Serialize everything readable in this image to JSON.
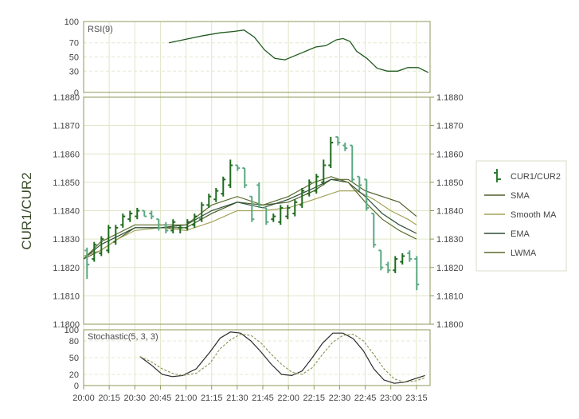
{
  "chart_data": {
    "type": "ohlc",
    "ylabel": "CUR1/CUR2",
    "price_range": [
      1.18,
      1.188
    ],
    "price_ticks": [
      "1.1800",
      "1.1810",
      "1.1820",
      "1.1830",
      "1.1840",
      "1.1850",
      "1.1860",
      "1.1870",
      "1.1880"
    ],
    "time_ticks": [
      "20:00",
      "20:15",
      "20:30",
      "20:45",
      "21:00",
      "21:15",
      "21:30",
      "21:45",
      "22:00",
      "22:15",
      "22:30",
      "22:45",
      "23:00",
      "23:15"
    ],
    "legend_position": "right",
    "legend": [
      {
        "name": "CUR1/CUR2",
        "color": "#2e7d32",
        "kind": "ohlc"
      },
      {
        "name": "SMA",
        "color": "#4e5d2a",
        "kind": "line"
      },
      {
        "name": "Smooth MA",
        "color": "#a3a35a",
        "kind": "line"
      },
      {
        "name": "EMA",
        "color": "#2f4f3a",
        "kind": "line"
      },
      {
        "name": "LWMA",
        "color": "#5a6b2a",
        "kind": "line"
      }
    ],
    "colors": {
      "up": "#1f6b1f",
      "down": "#5aa882",
      "grid": "#dfe6c8",
      "axis": "#8c9a5a"
    },
    "bars": [
      {
        "t": 0.0,
        "o": 1.1826,
        "h": 1.1827,
        "l": 1.1816,
        "c": 1.1821
      },
      {
        "t": 4.2,
        "o": 1.1823,
        "h": 1.1829,
        "l": 1.1822,
        "c": 1.1828
      },
      {
        "t": 8.4,
        "o": 1.1825,
        "h": 1.1831,
        "l": 1.1824,
        "c": 1.183
      },
      {
        "t": 12.6,
        "o": 1.1826,
        "h": 1.1835,
        "l": 1.1825,
        "c": 1.1834
      },
      {
        "t": 16.8,
        "o": 1.1829,
        "h": 1.1835,
        "l": 1.1828,
        "c": 1.1834
      },
      {
        "t": 21.0,
        "o": 1.1835,
        "h": 1.1839,
        "l": 1.1834,
        "c": 1.1838
      },
      {
        "t": 25.2,
        "o": 1.1837,
        "h": 1.184,
        "l": 1.1836,
        "c": 1.1839
      },
      {
        "t": 29.4,
        "o": 1.1838,
        "h": 1.1841,
        "l": 1.1837,
        "c": 1.184
      },
      {
        "t": 33.6,
        "o": 1.184,
        "h": 1.184,
        "l": 1.1838,
        "c": 1.1838
      },
      {
        "t": 37.8,
        "o": 1.1839,
        "h": 1.184,
        "l": 1.1837,
        "c": 1.1838
      },
      {
        "t": 42.0,
        "o": 1.1837,
        "h": 1.1837,
        "l": 1.1833,
        "c": 1.1834
      },
      {
        "t": 46.2,
        "o": 1.1835,
        "h": 1.1836,
        "l": 1.1832,
        "c": 1.1833
      },
      {
        "t": 50.4,
        "o": 1.1833,
        "h": 1.1837,
        "l": 1.1832,
        "c": 1.1836
      },
      {
        "t": 54.6,
        "o": 1.1834,
        "h": 1.1835,
        "l": 1.1832,
        "c": 1.1834
      },
      {
        "t": 58.8,
        "o": 1.1834,
        "h": 1.1837,
        "l": 1.1833,
        "c": 1.1836
      },
      {
        "t": 63.0,
        "o": 1.1835,
        "h": 1.1839,
        "l": 1.1834,
        "c": 1.1838
      },
      {
        "t": 67.2,
        "o": 1.1837,
        "h": 1.1843,
        "l": 1.1836,
        "c": 1.1842
      },
      {
        "t": 71.4,
        "o": 1.1842,
        "h": 1.1846,
        "l": 1.1841,
        "c": 1.1845
      },
      {
        "t": 75.6,
        "o": 1.1844,
        "h": 1.1848,
        "l": 1.1843,
        "c": 1.1847
      },
      {
        "t": 79.8,
        "o": 1.1846,
        "h": 1.1852,
        "l": 1.1845,
        "c": 1.1851
      },
      {
        "t": 84.0,
        "o": 1.1849,
        "h": 1.1858,
        "l": 1.1848,
        "c": 1.1856
      },
      {
        "t": 88.2,
        "o": 1.1856,
        "h": 1.1856,
        "l": 1.1854,
        "c": 1.1855
      },
      {
        "t": 92.4,
        "o": 1.1855,
        "h": 1.1855,
        "l": 1.1848,
        "c": 1.1849
      },
      {
        "t": 96.6,
        "o": 1.1845,
        "h": 1.1845,
        "l": 1.1836,
        "c": 1.1837
      },
      {
        "t": 100.8,
        "o": 1.1849,
        "h": 1.185,
        "l": 1.1841,
        "c": 1.1842
      },
      {
        "t": 105.0,
        "o": 1.1841,
        "h": 1.1841,
        "l": 1.1835,
        "c": 1.1836
      },
      {
        "t": 109.2,
        "o": 1.1837,
        "h": 1.1839,
        "l": 1.1836,
        "c": 1.1838
      },
      {
        "t": 113.4,
        "o": 1.1836,
        "h": 1.1842,
        "l": 1.1835,
        "c": 1.1841
      },
      {
        "t": 117.6,
        "o": 1.1838,
        "h": 1.1842,
        "l": 1.1837,
        "c": 1.1841
      },
      {
        "t": 121.8,
        "o": 1.1839,
        "h": 1.1844,
        "l": 1.1838,
        "c": 1.1843
      },
      {
        "t": 126.0,
        "o": 1.1842,
        "h": 1.1848,
        "l": 1.1841,
        "c": 1.1847
      },
      {
        "t": 130.2,
        "o": 1.1846,
        "h": 1.1851,
        "l": 1.1845,
        "c": 1.185
      },
      {
        "t": 134.4,
        "o": 1.1847,
        "h": 1.1853,
        "l": 1.1846,
        "c": 1.1852
      },
      {
        "t": 138.6,
        "o": 1.185,
        "h": 1.1858,
        "l": 1.1849,
        "c": 1.1856
      },
      {
        "t": 142.8,
        "o": 1.1856,
        "h": 1.1866,
        "l": 1.1855,
        "c": 1.1864
      },
      {
        "t": 147.0,
        "o": 1.1866,
        "h": 1.1866,
        "l": 1.1863,
        "c": 1.1864
      },
      {
        "t": 151.2,
        "o": 1.1863,
        "h": 1.1864,
        "l": 1.1861,
        "c": 1.1862
      },
      {
        "t": 155.4,
        "o": 1.1863,
        "h": 1.1863,
        "l": 1.185,
        "c": 1.1851
      },
      {
        "t": 159.6,
        "o": 1.1852,
        "h": 1.1852,
        "l": 1.1847,
        "c": 1.1849
      },
      {
        "t": 163.8,
        "o": 1.1851,
        "h": 1.1851,
        "l": 1.184,
        "c": 1.1841
      },
      {
        "t": 168.0,
        "o": 1.1839,
        "h": 1.1839,
        "l": 1.1827,
        "c": 1.1828
      },
      {
        "t": 172.2,
        "o": 1.1826,
        "h": 1.1826,
        "l": 1.1819,
        "c": 1.182
      },
      {
        "t": 176.4,
        "o": 1.1821,
        "h": 1.1822,
        "l": 1.1818,
        "c": 1.1819
      },
      {
        "t": 180.6,
        "o": 1.1819,
        "h": 1.1824,
        "l": 1.1818,
        "c": 1.1823
      },
      {
        "t": 184.8,
        "o": 1.1822,
        "h": 1.1825,
        "l": 1.1821,
        "c": 1.1824
      },
      {
        "t": 189.0,
        "o": 1.1825,
        "h": 1.1826,
        "l": 1.1822,
        "c": 1.1823
      },
      {
        "t": 193.2,
        "o": 1.1823,
        "h": 1.1824,
        "l": 1.1812,
        "c": 1.1814
      }
    ],
    "overlays": [
      {
        "name": "SMA",
        "color": "#4e5d2a",
        "points": [
          [
            0,
            1.1823
          ],
          [
            10,
            1.1826
          ],
          [
            20,
            1.183
          ],
          [
            30,
            1.1834
          ],
          [
            45,
            1.1834
          ],
          [
            60,
            1.1834
          ],
          [
            75,
            1.1839
          ],
          [
            90,
            1.1843
          ],
          [
            105,
            1.1842
          ],
          [
            120,
            1.1843
          ],
          [
            135,
            1.1847
          ],
          [
            145,
            1.1851
          ],
          [
            155,
            1.1851
          ],
          [
            165,
            1.1847
          ],
          [
            175,
            1.1845
          ],
          [
            185,
            1.1843
          ],
          [
            195,
            1.1838
          ]
        ]
      },
      {
        "name": "Smooth MA",
        "color": "#a3a35a",
        "points": [
          [
            0,
            1.1824
          ],
          [
            10,
            1.1826
          ],
          [
            20,
            1.183
          ],
          [
            30,
            1.1833
          ],
          [
            45,
            1.1834
          ],
          [
            60,
            1.1833
          ],
          [
            75,
            1.1836
          ],
          [
            90,
            1.184
          ],
          [
            105,
            1.184
          ],
          [
            120,
            1.1841
          ],
          [
            135,
            1.1844
          ],
          [
            150,
            1.1847
          ],
          [
            160,
            1.1847
          ],
          [
            170,
            1.1844
          ],
          [
            180,
            1.184
          ],
          [
            190,
            1.1837
          ],
          [
            195,
            1.1835
          ]
        ]
      },
      {
        "name": "EMA",
        "color": "#2f4f3a",
        "points": [
          [
            0,
            1.1823
          ],
          [
            10,
            1.1828
          ],
          [
            20,
            1.1831
          ],
          [
            30,
            1.1834
          ],
          [
            45,
            1.1834
          ],
          [
            60,
            1.1835
          ],
          [
            75,
            1.184
          ],
          [
            90,
            1.1843
          ],
          [
            105,
            1.1841
          ],
          [
            120,
            1.1844
          ],
          [
            135,
            1.1848
          ],
          [
            145,
            1.1851
          ],
          [
            155,
            1.185
          ],
          [
            165,
            1.1845
          ],
          [
            175,
            1.1839
          ],
          [
            185,
            1.1835
          ],
          [
            195,
            1.1832
          ]
        ]
      },
      {
        "name": "LWMA",
        "color": "#5a6b2a",
        "points": [
          [
            0,
            1.1823
          ],
          [
            10,
            1.1829
          ],
          [
            20,
            1.1832
          ],
          [
            30,
            1.1835
          ],
          [
            45,
            1.1835
          ],
          [
            60,
            1.1835
          ],
          [
            75,
            1.1842
          ],
          [
            90,
            1.1845
          ],
          [
            105,
            1.1842
          ],
          [
            120,
            1.1845
          ],
          [
            135,
            1.185
          ],
          [
            145,
            1.1852
          ],
          [
            155,
            1.185
          ],
          [
            165,
            1.1843
          ],
          [
            175,
            1.1837
          ],
          [
            185,
            1.1833
          ],
          [
            195,
            1.183
          ]
        ]
      }
    ],
    "rsi": {
      "title": "RSI(9)",
      "range": [
        0,
        100
      ],
      "ticks": [
        "0",
        "30",
        "50",
        "70",
        "100"
      ],
      "color": "#1f5a1f",
      "points": [
        [
          50,
          70
        ],
        [
          60,
          75
        ],
        [
          70,
          80
        ],
        [
          80,
          84
        ],
        [
          88,
          86
        ],
        [
          94,
          88
        ],
        [
          100,
          78
        ],
        [
          106,
          60
        ],
        [
          112,
          48
        ],
        [
          118,
          46
        ],
        [
          124,
          52
        ],
        [
          130,
          58
        ],
        [
          136,
          64
        ],
        [
          142,
          66
        ],
        [
          148,
          74
        ],
        [
          152,
          76
        ],
        [
          156,
          72
        ],
        [
          160,
          58
        ],
        [
          166,
          48
        ],
        [
          172,
          34
        ],
        [
          178,
          30
        ],
        [
          184,
          30
        ],
        [
          190,
          35
        ],
        [
          196,
          35
        ],
        [
          202,
          28
        ]
      ]
    },
    "stochastic": {
      "title": "Stochastic(5, 3, 3)",
      "range": [
        0,
        100
      ],
      "ticks": [
        "0",
        "20",
        "50",
        "80",
        "100"
      ],
      "k_color": "#2b2b2b",
      "d_color": "#8c9a5a",
      "k_points": [
        [
          33,
          52
        ],
        [
          40,
          36
        ],
        [
          46,
          20
        ],
        [
          52,
          16
        ],
        [
          58,
          18
        ],
        [
          66,
          30
        ],
        [
          74,
          60
        ],
        [
          80,
          85
        ],
        [
          86,
          96
        ],
        [
          92,
          94
        ],
        [
          98,
          80
        ],
        [
          104,
          60
        ],
        [
          110,
          38
        ],
        [
          116,
          20
        ],
        [
          122,
          18
        ],
        [
          128,
          26
        ],
        [
          134,
          50
        ],
        [
          140,
          76
        ],
        [
          146,
          94
        ],
        [
          152,
          94
        ],
        [
          158,
          84
        ],
        [
          164,
          62
        ],
        [
          170,
          30
        ],
        [
          176,
          10
        ],
        [
          182,
          4
        ],
        [
          188,
          6
        ],
        [
          194,
          12
        ],
        [
          200,
          18
        ]
      ],
      "d_points": [
        [
          33,
          52
        ],
        [
          40,
          42
        ],
        [
          46,
          30
        ],
        [
          52,
          22
        ],
        [
          58,
          18
        ],
        [
          66,
          22
        ],
        [
          74,
          40
        ],
        [
          80,
          66
        ],
        [
          86,
          82
        ],
        [
          92,
          92
        ],
        [
          98,
          90
        ],
        [
          104,
          76
        ],
        [
          110,
          56
        ],
        [
          116,
          38
        ],
        [
          122,
          24
        ],
        [
          128,
          20
        ],
        [
          134,
          32
        ],
        [
          140,
          56
        ],
        [
          146,
          78
        ],
        [
          152,
          90
        ],
        [
          158,
          92
        ],
        [
          164,
          80
        ],
        [
          170,
          56
        ],
        [
          176,
          30
        ],
        [
          182,
          12
        ],
        [
          188,
          6
        ],
        [
          194,
          8
        ],
        [
          200,
          14
        ]
      ]
    }
  }
}
